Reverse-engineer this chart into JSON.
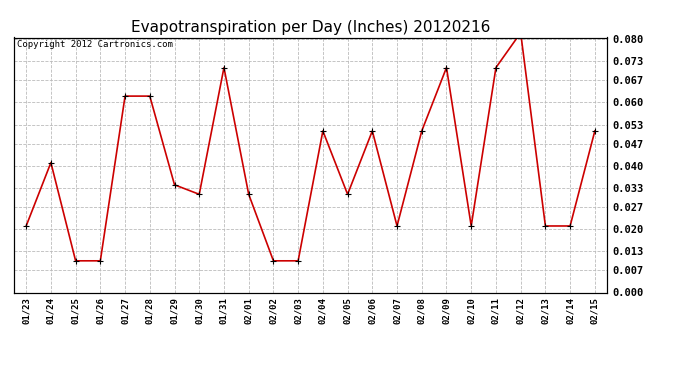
{
  "title": "Evapotranspiration per Day (Inches) 20120216",
  "copyright": "Copyright 2012 Cartronics.com",
  "dates": [
    "01/23",
    "01/24",
    "01/25",
    "01/26",
    "01/27",
    "01/28",
    "01/29",
    "01/30",
    "01/31",
    "02/01",
    "02/02",
    "02/03",
    "02/04",
    "02/05",
    "02/06",
    "02/07",
    "02/08",
    "02/09",
    "02/10",
    "02/11",
    "02/12",
    "02/13",
    "02/14",
    "02/15"
  ],
  "values": [
    0.021,
    0.041,
    0.01,
    0.01,
    0.062,
    0.062,
    0.034,
    0.031,
    0.071,
    0.031,
    0.01,
    0.01,
    0.051,
    0.031,
    0.051,
    0.021,
    0.051,
    0.071,
    0.021,
    0.071,
    0.082,
    0.021,
    0.021,
    0.051
  ],
  "yticks": [
    0.0,
    0.007,
    0.013,
    0.02,
    0.027,
    0.033,
    0.04,
    0.047,
    0.053,
    0.06,
    0.067,
    0.073,
    0.08
  ],
  "ymin": 0.0,
  "ymax": 0.08,
  "line_color": "#cc0000",
  "marker_color": "#cc0000",
  "bg_color": "#ffffff",
  "grid_color": "#bbbbbb",
  "title_fontsize": 11,
  "copyright_fontsize": 6.5
}
